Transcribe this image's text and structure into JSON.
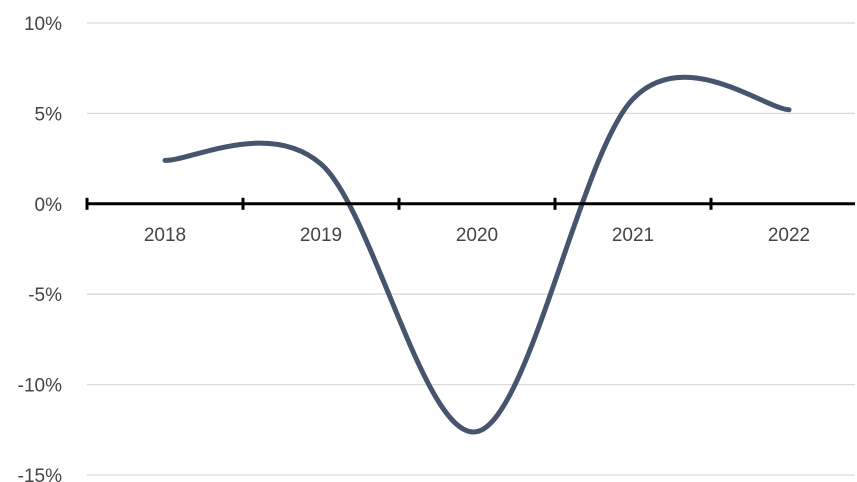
{
  "chart_data": {
    "type": "line",
    "categories": [
      "2018",
      "2019",
      "2020",
      "2021",
      "2022"
    ],
    "series": [
      {
        "values": [
          2.4,
          2.2,
          -12.6,
          5.8,
          5.2
        ]
      }
    ],
    "y_tick_labels": [
      "10%",
      "5%",
      "0%",
      "-5%",
      "-10%",
      "-15%"
    ],
    "y_tick_values": [
      10,
      5,
      0,
      -5,
      -10,
      -15
    ],
    "ylim": [
      -15,
      10
    ],
    "grid": true,
    "line_color": "#46546e",
    "axis_color": "#000000",
    "grid_color": "#d9d9d9"
  }
}
